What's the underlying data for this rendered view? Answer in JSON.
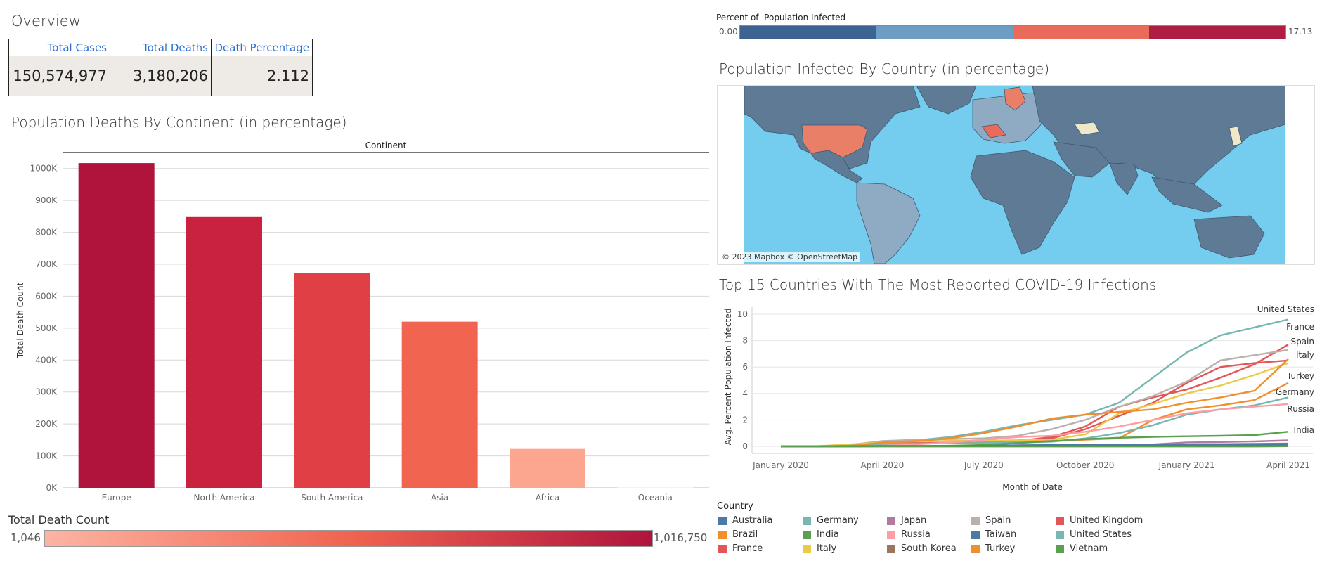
{
  "overview": {
    "title": "Overview",
    "headers": [
      "Total Cases",
      "Total Deaths",
      "Death Percentage"
    ],
    "values": [
      "150,574,977",
      "3,180,206",
      "2.112"
    ]
  },
  "deaths_chart": {
    "title": "Population Deaths By Continent (in percentage)",
    "column_header": "Continent",
    "ylabel": "Total Death Count",
    "y_ticks": [
      "0K",
      "100K",
      "200K",
      "300K",
      "400K",
      "500K",
      "600K",
      "700K",
      "800K",
      "900K",
      "1000K"
    ],
    "bar_colors": [
      "#b0143c",
      "#c8223f",
      "#e03f46",
      "#f06450",
      "#fca690",
      "#fde0d6"
    ]
  },
  "death_legend": {
    "title": "Total Death Count",
    "min": "1,046",
    "max": "1,016,750",
    "color_min": "#fcb4a2",
    "color_max": "#b0143c"
  },
  "infected_legend": {
    "title": "Percent of  Population Infected",
    "min": "0.00",
    "max": "17.13",
    "colors": [
      "#3d6490",
      "#6c9dc4",
      "#ea6b5a",
      "#b01d44"
    ]
  },
  "map": {
    "title": "Population Infected By Country (in percentage)",
    "attribution": "© 2023 Mapbox © OpenStreetMap",
    "ocean_color": "#74cdef",
    "land_color": "#5e7a95"
  },
  "line_chart": {
    "title": "Top 15 Countries With The Most Reported COVID-19 Infections",
    "xlabel": "Month of Date",
    "ylabel": "Avg. Percent Population Infected",
    "x_ticks": [
      "January 2020",
      "April 2020",
      "July 2020",
      "October 2020",
      "January 2021",
      "April 2021"
    ],
    "y_ticks": [
      "0",
      "2",
      "4",
      "6",
      "8",
      "10"
    ],
    "end_labels": [
      "United States",
      "France",
      "Spain",
      "Italy",
      "Turkey",
      "Germany",
      "Russia",
      "India"
    ]
  },
  "country_legend": {
    "title": "Country",
    "items": [
      {
        "name": "Australia",
        "color": "#4e79a7"
      },
      {
        "name": "Brazil",
        "color": "#f28e2b"
      },
      {
        "name": "France",
        "color": "#e15759"
      },
      {
        "name": "Germany",
        "color": "#76b7b2"
      },
      {
        "name": "India",
        "color": "#59a14f"
      },
      {
        "name": "Italy",
        "color": "#edc948"
      },
      {
        "name": "Japan",
        "color": "#b07aa1"
      },
      {
        "name": "Russia",
        "color": "#ff9da7"
      },
      {
        "name": "South Korea",
        "color": "#9c755f"
      },
      {
        "name": "Spain",
        "color": "#bab0ac"
      },
      {
        "name": "Taiwan",
        "color": "#4e79a7"
      },
      {
        "name": "Turkey",
        "color": "#f28e2b"
      },
      {
        "name": "United Kingdom",
        "color": "#e15759"
      },
      {
        "name": "United States",
        "color": "#76b7b2"
      },
      {
        "name": "Vietnam",
        "color": "#59a14f"
      }
    ]
  },
  "chart_data": [
    {
      "type": "bar",
      "title": "Population Deaths By Continent (in percentage)",
      "xlabel": "Continent",
      "ylabel": "Total Death Count",
      "categories": [
        "Europe",
        "North America",
        "South America",
        "Asia",
        "Africa",
        "Oceania"
      ],
      "values": [
        1016750,
        847942,
        672415,
        520286,
        121784,
        1046
      ],
      "ylim": [
        0,
        1050000
      ],
      "grid": true
    },
    {
      "type": "line",
      "title": "Top 15 Countries With The Most Reported COVID-19 Infections",
      "xlabel": "Month of Date",
      "ylabel": "Avg. Percent Population Infected",
      "x": [
        "January 2020",
        "February 2020",
        "March 2020",
        "April 2020",
        "May 2020",
        "June 2020",
        "July 2020",
        "August 2020",
        "September 2020",
        "October 2020",
        "November 2020",
        "December 2020",
        "January 2021",
        "February 2021",
        "March 2021",
        "April 2021"
      ],
      "ylim": [
        0,
        10
      ],
      "legend_position": "bottom-left",
      "series": [
        {
          "name": "United States",
          "values": [
            0,
            0,
            0.02,
            0.25,
            0.45,
            0.7,
            1.1,
            1.6,
            2.0,
            2.4,
            3.3,
            5.2,
            7.1,
            8.4,
            9.0,
            9.6
          ]
        },
        {
          "name": "United Kingdom",
          "values": [
            0,
            0,
            0.02,
            0.2,
            0.35,
            0.4,
            0.42,
            0.45,
            0.6,
            1.3,
            2.3,
            3.3,
            4.8,
            6.0,
            6.3,
            6.5
          ]
        },
        {
          "name": "France",
          "values": [
            0,
            0,
            0.05,
            0.2,
            0.3,
            0.3,
            0.35,
            0.4,
            0.7,
            1.5,
            3.0,
            3.7,
            4.3,
            5.2,
            6.2,
            7.7
          ]
        },
        {
          "name": "Spain",
          "values": [
            0,
            0,
            0.1,
            0.4,
            0.5,
            0.55,
            0.6,
            0.8,
            1.3,
            2.0,
            3.0,
            3.8,
            4.9,
            6.5,
            6.9,
            7.3
          ]
        },
        {
          "name": "Italy",
          "values": [
            0,
            0,
            0.15,
            0.3,
            0.38,
            0.4,
            0.42,
            0.45,
            0.5,
            0.9,
            2.5,
            3.2,
            4.0,
            4.6,
            5.4,
            6.3
          ]
        },
        {
          "name": "Turkey",
          "values": [
            0,
            0,
            0.02,
            0.15,
            0.2,
            0.25,
            0.3,
            0.35,
            0.4,
            0.5,
            0.6,
            2.0,
            2.8,
            3.1,
            3.5,
            4.8
          ]
        },
        {
          "name": "Germany",
          "values": [
            0,
            0,
            0.05,
            0.18,
            0.21,
            0.23,
            0.25,
            0.3,
            0.35,
            0.6,
            1.0,
            1.6,
            2.4,
            2.8,
            3.1,
            3.7
          ]
        },
        {
          "name": "Russia",
          "values": [
            0,
            0,
            0,
            0.05,
            0.15,
            0.3,
            0.5,
            0.7,
            0.8,
            1.1,
            1.5,
            2.0,
            2.5,
            2.8,
            3.0,
            3.2
          ]
        },
        {
          "name": "Brazil",
          "values": [
            0,
            0,
            0.01,
            0.3,
            0.4,
            0.6,
            1.0,
            1.5,
            2.1,
            2.4,
            2.6,
            2.8,
            3.3,
            3.7,
            4.2,
            6.6
          ]
        },
        {
          "name": "India",
          "values": [
            0,
            0,
            0,
            0.01,
            0.02,
            0.05,
            0.1,
            0.25,
            0.4,
            0.55,
            0.65,
            0.72,
            0.76,
            0.8,
            0.85,
            1.1
          ]
        },
        {
          "name": "Japan",
          "values": [
            0,
            0,
            0,
            0.01,
            0.01,
            0.02,
            0.03,
            0.05,
            0.06,
            0.08,
            0.1,
            0.15,
            0.3,
            0.33,
            0.37,
            0.45
          ]
        },
        {
          "name": "South Korea",
          "values": [
            0,
            0,
            0.02,
            0.02,
            0.02,
            0.02,
            0.03,
            0.04,
            0.04,
            0.05,
            0.06,
            0.1,
            0.15,
            0.17,
            0.19,
            0.22
          ]
        },
        {
          "name": "Australia",
          "values": [
            0,
            0,
            0.01,
            0.03,
            0.03,
            0.03,
            0.04,
            0.08,
            0.1,
            0.11,
            0.11,
            0.11,
            0.11,
            0.11,
            0.11,
            0.12
          ]
        },
        {
          "name": "Taiwan",
          "values": [
            0,
            0,
            0,
            0,
            0,
            0,
            0,
            0,
            0,
            0,
            0,
            0,
            0,
            0,
            0,
            0.01
          ]
        },
        {
          "name": "Vietnam",
          "values": [
            0,
            0,
            0,
            0,
            0,
            0,
            0,
            0,
            0,
            0,
            0,
            0,
            0,
            0,
            0,
            0.01
          ]
        }
      ]
    }
  ]
}
